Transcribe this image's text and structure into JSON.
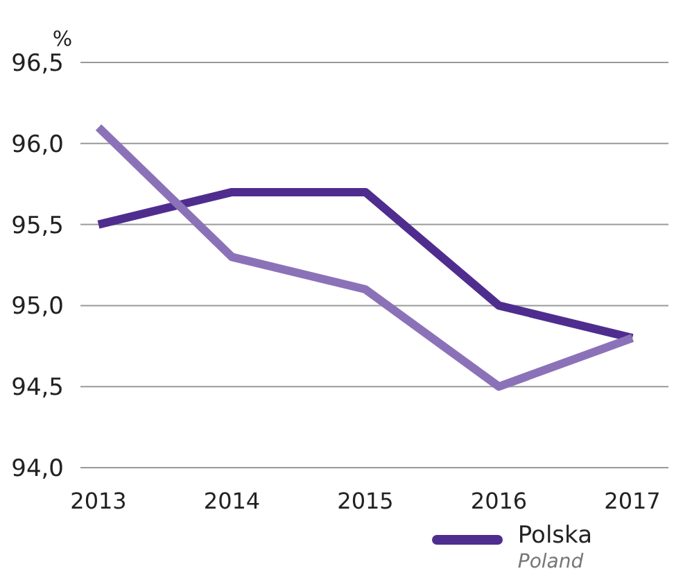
{
  "chart_data": {
    "type": "line",
    "ylabel": "%",
    "categories": [
      "2013",
      "2014",
      "2015",
      "2016",
      "2017"
    ],
    "series": [
      {
        "name": "Polska\nPoland",
        "color": "#4f2d8f",
        "values": [
          95.5,
          95.7,
          95.7,
          95.0,
          94.8
        ]
      },
      {
        "color": "#8b72b8",
        "values": [
          96.1,
          95.3,
          95.1,
          94.5,
          94.8
        ]
      }
    ],
    "ylim": [
      94.0,
      96.5
    ],
    "yticks": [
      {
        "value": 94.0,
        "label": "94,0"
      },
      {
        "value": 94.5,
        "label": "94,5"
      },
      {
        "value": 95.0,
        "label": "95,0"
      },
      {
        "value": 95.5,
        "label": "95,5"
      },
      {
        "value": 96.0,
        "label": "96,0"
      },
      {
        "value": 96.5,
        "label": "96,5"
      }
    ],
    "grid": "y",
    "legend": "bottom right",
    "marker": "none",
    "line_style": "solid"
  }
}
